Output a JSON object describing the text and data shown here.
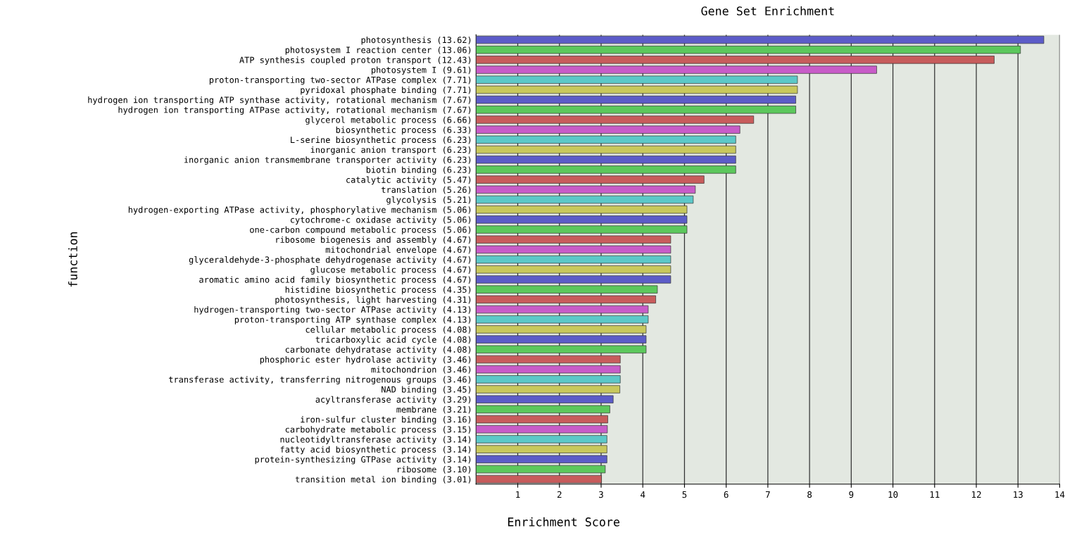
{
  "chart_data": {
    "type": "bar",
    "orientation": "horizontal",
    "title": "Gene Set Enrichment",
    "xlabel": "Enrichment Score",
    "ylabel": "function",
    "categories": [
      "photosynthesis (13.62)",
      "photosystem I reaction center (13.06)",
      "ATP synthesis coupled proton transport (12.43)",
      "photosystem I (9.61)",
      "proton-transporting two-sector ATPase complex (7.71)",
      "pyridoxal phosphate binding (7.71)",
      "hydrogen ion transporting ATP synthase activity, rotational mechanism (7.67)",
      "hydrogen ion transporting ATPase activity, rotational mechanism (7.67)",
      "glycerol metabolic process (6.66)",
      "biosynthetic process (6.33)",
      "L-serine biosynthetic process (6.23)",
      "inorganic anion transport (6.23)",
      "inorganic anion transmembrane transporter activity (6.23)",
      "biotin binding (6.23)",
      "catalytic activity (5.47)",
      "translation (5.26)",
      "glycolysis (5.21)",
      "hydrogen-exporting ATPase activity, phosphorylative mechanism (5.06)",
      "cytochrome-c oxidase activity (5.06)",
      "one-carbon compound metabolic process (5.06)",
      "ribosome biogenesis and assembly (4.67)",
      "mitochondrial envelope (4.67)",
      "glyceraldehyde-3-phosphate dehydrogenase activity (4.67)",
      "glucose metabolic process (4.67)",
      "aromatic amino acid family biosynthetic process (4.67)",
      "histidine biosynthetic process (4.35)",
      "photosynthesis, light harvesting (4.31)",
      "hydrogen-transporting two-sector ATPase activity (4.13)",
      "proton-transporting ATP synthase complex (4.13)",
      "cellular metabolic process (4.08)",
      "tricarboxylic acid cycle (4.08)",
      "carbonate dehydratase activity (4.08)",
      "phosphoric ester hydrolase activity (3.46)",
      "mitochondrion (3.46)",
      "transferase activity, transferring nitrogenous groups (3.46)",
      "NAD binding (3.45)",
      "acyltransferase activity (3.29)",
      "membrane (3.21)",
      "iron-sulfur cluster binding (3.16)",
      "carbohydrate metabolic process (3.15)",
      "nucleotidyltransferase activity (3.14)",
      "fatty acid biosynthetic process (3.14)",
      "protein-synthesizing GTPase activity (3.14)",
      "ribosome (3.10)",
      "transition metal ion binding (3.01)"
    ],
    "values": [
      13.62,
      13.06,
      12.43,
      9.61,
      7.71,
      7.71,
      7.67,
      7.67,
      6.66,
      6.33,
      6.23,
      6.23,
      6.23,
      6.23,
      5.47,
      5.26,
      5.21,
      5.06,
      5.06,
      5.06,
      4.67,
      4.67,
      4.67,
      4.67,
      4.67,
      4.35,
      4.31,
      4.13,
      4.13,
      4.08,
      4.08,
      4.08,
      3.46,
      3.46,
      3.46,
      3.45,
      3.29,
      3.21,
      3.16,
      3.15,
      3.14,
      3.14,
      3.14,
      3.1,
      3.01
    ],
    "colors": [
      "#5c5cc8",
      "#5cc85c",
      "#c85c5c",
      "#c85cc8",
      "#5cc8c8",
      "#c8c85c",
      "#5c5cc8",
      "#5cc85c",
      "#c85c5c",
      "#c85cc8",
      "#5cc8c8",
      "#c8c85c",
      "#5c5cc8",
      "#5cc85c",
      "#c85c5c",
      "#c85cc8",
      "#5cc8c8",
      "#c8c85c",
      "#5c5cc8",
      "#5cc85c",
      "#c85c5c",
      "#c85cc8",
      "#5cc8c8",
      "#c8c85c",
      "#5c5cc8",
      "#5cc85c",
      "#c85c5c",
      "#c85cc8",
      "#5cc8c8",
      "#c8c85c",
      "#5c5cc8",
      "#5cc85c",
      "#c85c5c",
      "#c85cc8",
      "#5cc8c8",
      "#c8c85c",
      "#5c5cc8",
      "#5cc85c",
      "#c85c5c",
      "#c85cc8",
      "#5cc8c8",
      "#c8c85c",
      "#5c5cc8",
      "#5cc85c",
      "#c85c5c"
    ],
    "xlim": [
      0,
      14
    ],
    "xticks": [
      1,
      2,
      3,
      4,
      5,
      6,
      7,
      8,
      9,
      10,
      11,
      12,
      13,
      14
    ],
    "grid": "x"
  }
}
